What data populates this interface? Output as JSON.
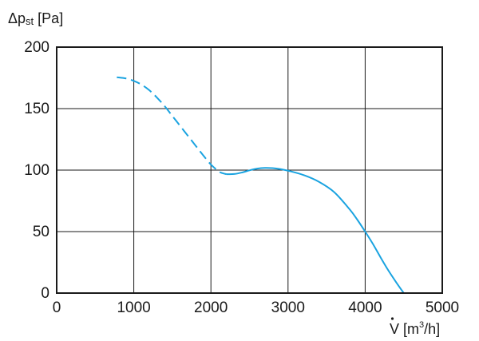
{
  "chart_data": {
    "type": "line",
    "ylabel": {
      "delta": "Δp",
      "sub": "st",
      "unit": " [Pa]"
    },
    "xlabel": {
      "sym": "V",
      "unit_pre": " [m",
      "sup": "3",
      "unit_post": "/h]"
    },
    "xlim": [
      0,
      5000
    ],
    "ylim": [
      0,
      200
    ],
    "x_ticks": [
      0,
      1000,
      2000,
      3000,
      4000,
      5000
    ],
    "y_ticks": [
      0,
      50,
      100,
      150,
      200
    ],
    "x_tick_labels": [
      "0",
      "1000",
      "2000",
      "3000",
      "4000",
      "5000"
    ],
    "y_tick_labels": [
      "0",
      "50",
      "100",
      "150",
      "200"
    ],
    "grid": true,
    "series": [
      {
        "style": "dashed",
        "color": "#1aa3e0",
        "points": [
          [
            780,
            175.5
          ],
          [
            900,
            174.5
          ],
          [
            1000,
            172.5
          ],
          [
            1100,
            169.5
          ],
          [
            1200,
            165
          ],
          [
            1300,
            159
          ],
          [
            1400,
            152
          ],
          [
            1500,
            144
          ],
          [
            1600,
            136
          ],
          [
            1700,
            128
          ],
          [
            1800,
            120
          ],
          [
            1900,
            112
          ],
          [
            2000,
            104.5
          ],
          [
            2100,
            99
          ],
          [
            2150,
            97.5
          ],
          [
            2200,
            96.7
          ]
        ]
      },
      {
        "style": "solid",
        "color": "#1aa3e0",
        "points": [
          [
            2200,
            96.7
          ],
          [
            2300,
            96.8
          ],
          [
            2400,
            98
          ],
          [
            2500,
            99.8
          ],
          [
            2600,
            101.2
          ],
          [
            2700,
            101.8
          ],
          [
            2800,
            101.6
          ],
          [
            2900,
            100.8
          ],
          [
            3000,
            99.5
          ],
          [
            3200,
            96
          ],
          [
            3400,
            90.5
          ],
          [
            3600,
            82
          ],
          [
            3800,
            68
          ],
          [
            3900,
            59.5
          ],
          [
            4000,
            50
          ],
          [
            4100,
            40
          ],
          [
            4200,
            29
          ],
          [
            4300,
            18.5
          ],
          [
            4400,
            9
          ],
          [
            4500,
            0
          ]
        ]
      }
    ]
  }
}
